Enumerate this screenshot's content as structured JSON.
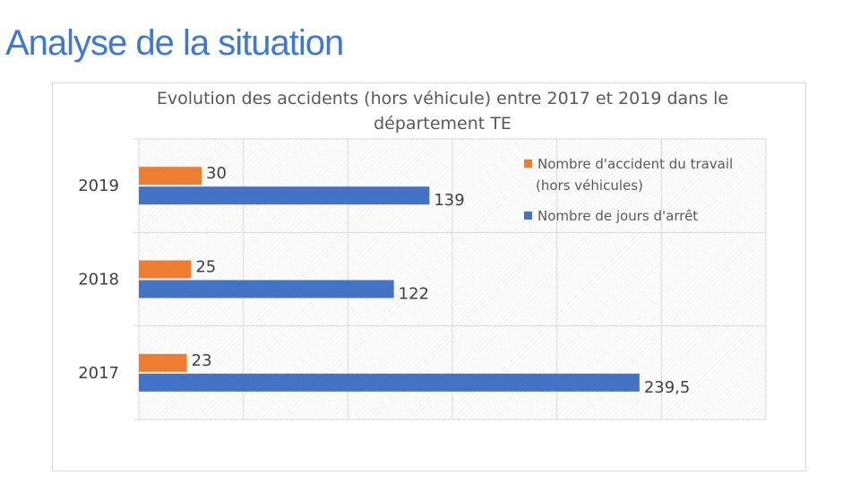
{
  "slide": {
    "title": "Analyse de la situation"
  },
  "colors": {
    "title": "#3f78cf",
    "series_accidents": "#ed7d31",
    "series_jours": "#4472c4",
    "grid": "#d9d9d9",
    "text": "#595959"
  },
  "chart_data": {
    "type": "bar",
    "orientation": "horizontal",
    "title_lines": [
      "Evolution des accidents (hors véhicule) entre 2017 et 2019 dans le",
      "département TE"
    ],
    "categories": [
      "2019",
      "2018",
      "2017"
    ],
    "series": [
      {
        "name": "Nombre d'accident du travail (hors véhicules)",
        "name_lines": [
          "Nombre d'accident du travail",
          "(hors véhicules)"
        ],
        "color": "#ed7d31",
        "values": [
          30,
          25,
          23
        ],
        "labels": [
          "30",
          "25",
          "23"
        ]
      },
      {
        "name": "Nombre de jours d'arrêt",
        "name_lines": [
          "Nombre de jours d'arrêt"
        ],
        "color": "#4472c4",
        "values": [
          139,
          122,
          239.5
        ],
        "labels": [
          "139",
          "122",
          "239,5"
        ]
      }
    ],
    "xlim": [
      0,
      300
    ],
    "gridlines": [
      0,
      50,
      100,
      150,
      200,
      250,
      300
    ],
    "grid": true,
    "legend_position": "top-right"
  }
}
